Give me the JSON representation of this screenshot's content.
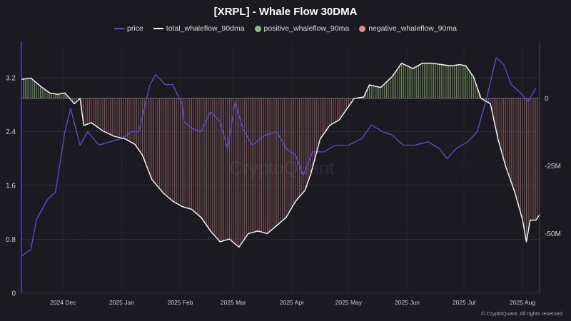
{
  "title": "[XRPL] - Whale Flow 30DMA",
  "legend": [
    {
      "label": "price",
      "color": "#5b4fd6",
      "marker": "line"
    },
    {
      "label": "total_whaleflow_90dma",
      "color": "#ffffff",
      "marker": "line"
    },
    {
      "label": "positive_whaleflow_90ma",
      "color": "#8fbc6f",
      "marker": "dot"
    },
    {
      "label": "negative_whaleflow_90ma",
      "color": "#d98b85",
      "marker": "dot"
    }
  ],
  "watermark": "CryptoQuant",
  "credit": "© CryptoQuant. All rights reserved",
  "chart_data": {
    "type": "line",
    "title": "[XRPL] - Whale Flow 30DMA",
    "x_ticks": [
      "2024 Dec",
      "2025 Jan",
      "2025 Feb",
      "2025 Mar",
      "2025 Apr",
      "2025 May",
      "2025 Jun",
      "2025 Jul",
      "2025 Aug"
    ],
    "y_left": {
      "ticks": [
        "0",
        "0.8",
        "1.6",
        "2.4",
        "3.2"
      ],
      "range": [
        0,
        3.7
      ]
    },
    "y_right": {
      "ticks": [
        "0",
        "-25M",
        "-50M"
      ],
      "range": [
        -72,
        20
      ],
      "unit": "M"
    },
    "grid": true,
    "legend_position": "top-center",
    "x_range": [
      "2024-11-09",
      "2025-08-10"
    ],
    "series": [
      {
        "name": "price",
        "axis": "left",
        "color": "#5b4fd6",
        "points": [
          [
            "2024-11-09",
            0.55
          ],
          [
            "2024-11-14",
            0.65
          ],
          [
            "2024-11-17",
            1.1
          ],
          [
            "2024-11-23",
            1.4
          ],
          [
            "2024-11-27",
            1.5
          ],
          [
            "2024-12-02",
            2.4
          ],
          [
            "2024-12-05",
            2.75
          ],
          [
            "2024-12-10",
            2.2
          ],
          [
            "2024-12-14",
            2.4
          ],
          [
            "2024-12-20",
            2.2
          ],
          [
            "2024-12-26",
            2.25
          ],
          [
            "2025-01-01",
            2.3
          ],
          [
            "2025-01-06",
            2.4
          ],
          [
            "2025-01-10",
            2.4
          ],
          [
            "2025-01-16",
            3.1
          ],
          [
            "2025-01-19",
            3.25
          ],
          [
            "2025-01-24",
            3.1
          ],
          [
            "2025-01-28",
            3.1
          ],
          [
            "2025-02-02",
            2.8
          ],
          [
            "2025-02-03",
            2.55
          ],
          [
            "2025-02-07",
            2.45
          ],
          [
            "2025-02-12",
            2.4
          ],
          [
            "2025-02-17",
            2.7
          ],
          [
            "2025-02-22",
            2.55
          ],
          [
            "2025-02-26",
            2.15
          ],
          [
            "2025-03-02",
            2.85
          ],
          [
            "2025-03-06",
            2.45
          ],
          [
            "2025-03-11",
            2.2
          ],
          [
            "2025-03-18",
            2.35
          ],
          [
            "2025-03-24",
            2.4
          ],
          [
            "2025-03-29",
            2.15
          ],
          [
            "2025-04-03",
            2.05
          ],
          [
            "2025-04-07",
            1.75
          ],
          [
            "2025-04-12",
            2.1
          ],
          [
            "2025-04-18",
            2.1
          ],
          [
            "2025-04-24",
            2.2
          ],
          [
            "2025-05-01",
            2.2
          ],
          [
            "2025-05-08",
            2.3
          ],
          [
            "2025-05-13",
            2.5
          ],
          [
            "2025-05-19",
            2.4
          ],
          [
            "2025-05-24",
            2.35
          ],
          [
            "2025-05-30",
            2.2
          ],
          [
            "2025-06-05",
            2.2
          ],
          [
            "2025-06-12",
            2.25
          ],
          [
            "2025-06-18",
            2.15
          ],
          [
            "2025-06-22",
            2.0
          ],
          [
            "2025-06-27",
            2.15
          ],
          [
            "2025-07-03",
            2.25
          ],
          [
            "2025-07-08",
            2.4
          ],
          [
            "2025-07-13",
            2.9
          ],
          [
            "2025-07-18",
            3.5
          ],
          [
            "2025-07-22",
            3.4
          ],
          [
            "2025-07-26",
            3.1
          ],
          [
            "2025-07-30",
            3.0
          ],
          [
            "2025-08-04",
            2.85
          ],
          [
            "2025-08-08",
            3.05
          ]
        ]
      },
      {
        "name": "total_whaleflow_90dma",
        "axis": "right",
        "color": "#ffffff",
        "unit": "M",
        "points": [
          [
            "2024-11-09",
            7
          ],
          [
            "2024-11-14",
            7.5
          ],
          [
            "2024-11-20",
            4
          ],
          [
            "2024-11-24",
            2
          ],
          [
            "2024-11-28",
            1.5
          ],
          [
            "2024-12-02",
            2
          ],
          [
            "2024-12-07",
            -2
          ],
          [
            "2024-12-10",
            0
          ],
          [
            "2024-12-12",
            -10
          ],
          [
            "2024-12-16",
            -9
          ],
          [
            "2024-12-22",
            -12
          ],
          [
            "2024-12-28",
            -14
          ],
          [
            "2025-01-03",
            -15
          ],
          [
            "2025-01-08",
            -17
          ],
          [
            "2025-01-12",
            -21
          ],
          [
            "2025-01-17",
            -30
          ],
          [
            "2025-01-23",
            -35
          ],
          [
            "2025-01-28",
            -38
          ],
          [
            "2025-02-02",
            -40
          ],
          [
            "2025-02-07",
            -41
          ],
          [
            "2025-02-12",
            -44
          ],
          [
            "2025-02-17",
            -49
          ],
          [
            "2025-02-22",
            -53
          ],
          [
            "2025-02-27",
            -52
          ],
          [
            "2025-03-04",
            -55
          ],
          [
            "2025-03-09",
            -50
          ],
          [
            "2025-03-14",
            -49
          ],
          [
            "2025-03-19",
            -50
          ],
          [
            "2025-03-24",
            -47
          ],
          [
            "2025-03-29",
            -44
          ],
          [
            "2025-04-03",
            -38
          ],
          [
            "2025-04-08",
            -34
          ],
          [
            "2025-04-11",
            -28
          ],
          [
            "2025-04-16",
            -15
          ],
          [
            "2025-04-21",
            -10
          ],
          [
            "2025-04-26",
            -8
          ],
          [
            "2025-05-01",
            -3
          ],
          [
            "2025-05-04",
            0
          ],
          [
            "2025-05-09",
            0.5
          ],
          [
            "2025-05-12",
            5
          ],
          [
            "2025-05-18",
            4
          ],
          [
            "2025-05-24",
            8
          ],
          [
            "2025-05-29",
            13
          ],
          [
            "2025-06-04",
            11
          ],
          [
            "2025-06-09",
            13
          ],
          [
            "2025-06-14",
            13
          ],
          [
            "2025-06-19",
            12.5
          ],
          [
            "2025-06-24",
            12
          ],
          [
            "2025-06-29",
            12.5
          ],
          [
            "2025-07-02",
            12
          ],
          [
            "2025-07-06",
            8
          ],
          [
            "2025-07-10",
            0
          ],
          [
            "2025-07-15",
            -2
          ],
          [
            "2025-07-19",
            -15
          ],
          [
            "2025-07-23",
            -25
          ],
          [
            "2025-07-28",
            -35
          ],
          [
            "2025-08-01",
            -45
          ],
          [
            "2025-08-03",
            -53
          ],
          [
            "2025-08-05",
            -45
          ],
          [
            "2025-08-08",
            -45
          ],
          [
            "2025-08-10",
            -43
          ]
        ]
      }
    ]
  }
}
